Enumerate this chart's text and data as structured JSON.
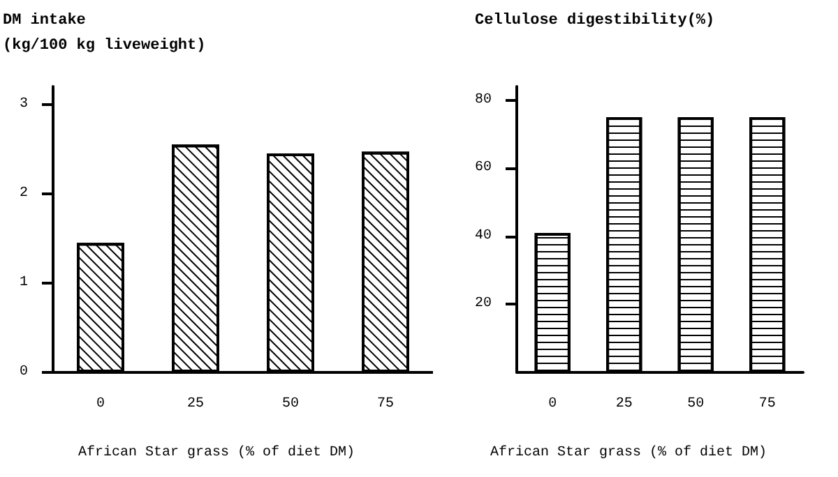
{
  "chart_data": [
    {
      "type": "bar",
      "ylabel": "DM intake\n(kg/100 kg liveweight)",
      "xlabel": "African Star grass (% of diet DM)",
      "categories": [
        "0",
        "25",
        "50",
        "75"
      ],
      "values": [
        1.45,
        2.55,
        2.45,
        2.47
      ],
      "color": "#000000",
      "ylim": [
        0,
        3.2
      ],
      "yticks": [
        0,
        1,
        2,
        3
      ],
      "grid": false
    },
    {
      "type": "bar",
      "ylabel": "Cellulose digestibility(%)",
      "xlabel": "African Star grass (% of diet DM)",
      "categories": [
        "0",
        "25",
        "50",
        "75"
      ],
      "values": [
        41,
        75,
        75,
        75
      ],
      "color": "#000000",
      "ylim": [
        0,
        84
      ],
      "yticks": [
        20,
        40,
        60,
        80
      ],
      "grid": false
    }
  ]
}
